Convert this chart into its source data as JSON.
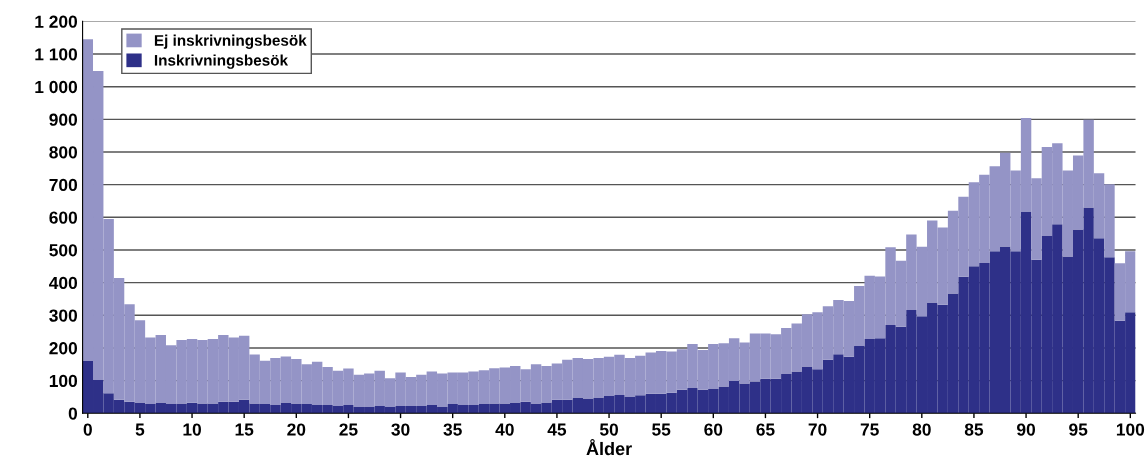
{
  "chart_data": {
    "type": "bar",
    "stacked": true,
    "xlabel": "Ålder",
    "categories": [
      "0",
      null,
      null,
      null,
      null,
      "5",
      null,
      null,
      null,
      null,
      "10",
      null,
      null,
      null,
      null,
      "15",
      null,
      null,
      null,
      null,
      "20",
      null,
      null,
      null,
      null,
      "25",
      null,
      null,
      null,
      null,
      "30",
      null,
      null,
      null,
      null,
      "35",
      null,
      null,
      null,
      null,
      "40",
      null,
      null,
      null,
      null,
      "45",
      null,
      null,
      null,
      null,
      "50",
      null,
      null,
      null,
      null,
      "55",
      null,
      null,
      null,
      null,
      "60",
      null,
      null,
      null,
      null,
      "65",
      null,
      null,
      null,
      null,
      "70",
      null,
      null,
      null,
      null,
      "75",
      null,
      null,
      null,
      null,
      "80",
      null,
      null,
      null,
      null,
      "85",
      null,
      null,
      null,
      null,
      "90",
      null,
      null,
      null,
      null,
      "95",
      null,
      null,
      null,
      null,
      "100"
    ],
    "series": [
      {
        "name": "Inskrivningsbesök",
        "color": "#2e3088",
        "values": [
          160,
          102,
          61,
          41,
          35,
          33,
          28,
          33,
          28,
          30,
          32,
          30,
          30,
          35,
          35,
          41,
          30,
          28,
          25,
          33,
          30,
          28,
          25,
          25,
          22,
          25,
          19,
          19,
          22,
          19,
          22,
          22,
          22,
          25,
          19,
          28,
          25,
          25,
          28,
          30,
          30,
          33,
          35,
          30,
          33,
          41,
          41,
          48,
          45,
          48,
          53,
          56,
          50,
          55,
          60,
          60,
          63,
          72,
          77,
          72,
          74,
          82,
          99,
          91,
          97,
          106,
          106,
          120,
          128,
          143,
          135,
          164,
          181,
          173,
          206,
          227,
          230,
          270,
          265,
          316,
          297,
          339,
          332,
          367,
          418,
          450,
          460,
          496,
          511,
          496,
          616,
          470,
          543,
          579,
          480,
          563,
          630,
          536,
          478,
          283,
          309
        ]
      },
      {
        "name": "Ej inskrivningsbesök",
        "color": "#9494c6",
        "values": [
          985,
          946,
          534,
          373,
          299,
          252,
          204,
          207,
          180,
          194,
          195,
          194,
          197,
          205,
          197,
          196,
          150,
          133,
          144,
          141,
          136,
          122,
          133,
          117,
          108,
          112,
          99,
          103,
          108,
          88,
          103,
          89,
          96,
          103,
          103,
          97,
          100,
          103,
          104,
          108,
          110,
          112,
          100,
          120,
          112,
          111,
          123,
          121,
          121,
          121,
          120,
          123,
          119,
          121,
          126,
          131,
          126,
          124,
          135,
          122,
          138,
          132,
          131,
          126,
          147,
          138,
          136,
          141,
          147,
          160,
          174,
          164,
          166,
          171,
          184,
          194,
          189,
          238,
          202,
          231,
          213,
          251,
          237,
          253,
          245,
          257,
          270,
          260,
          287,
          247,
          288,
          250,
          272,
          248,
          263,
          226,
          269,
          199,
          223,
          176,
          187
        ]
      }
    ],
    "ylim": [
      0,
      1200
    ],
    "yticks": [
      0,
      100,
      200,
      300,
      400,
      500,
      600,
      700,
      800,
      900,
      {
        "value": 1000,
        "label": "1 000"
      },
      {
        "value": 1100,
        "label": "1 100"
      },
      {
        "value": 1200,
        "label": "1 200"
      }
    ],
    "grid": "y",
    "legend": "top left"
  }
}
